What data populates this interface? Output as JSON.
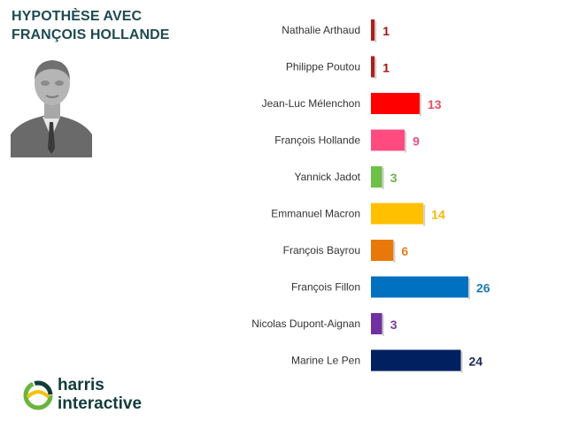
{
  "title": {
    "line1": "HYPOTHÈSE AVEC",
    "line2": "FRANÇOIS HOLLANDE"
  },
  "logo": {
    "line1": "harris",
    "line2": "interactive"
  },
  "chart_data": {
    "type": "bar",
    "orientation": "horizontal",
    "title": "HYPOTHÈSE AVEC FRANÇOIS HOLLANDE",
    "categories": [
      "Nathalie Arthaud",
      "Philippe Poutou",
      "Jean-Luc Mélenchon",
      "François Hollande",
      "Yannick Jadot",
      "Emmanuel Macron",
      "François Bayrou",
      "François Fillon",
      "Nicolas Dupont-Aignan",
      "Marine Le Pen"
    ],
    "values": [
      1,
      1,
      13,
      9,
      3,
      14,
      6,
      26,
      3,
      24
    ],
    "bar_colors": [
      "#b01c1c",
      "#b01c1c",
      "#ff0000",
      "#ff4b80",
      "#6ec046",
      "#ffc000",
      "#e8780a",
      "#0070c0",
      "#7030a0",
      "#002060"
    ],
    "label_colors": [
      "#a31515",
      "#a31515",
      "#e85060",
      "#e8508a",
      "#6ab04a",
      "#f5b800",
      "#e08020",
      "#1a7ab8",
      "#7a3aa0",
      "#1c2a5a"
    ],
    "xlim": [
      0,
      30
    ],
    "grid": false,
    "legend": "none"
  }
}
